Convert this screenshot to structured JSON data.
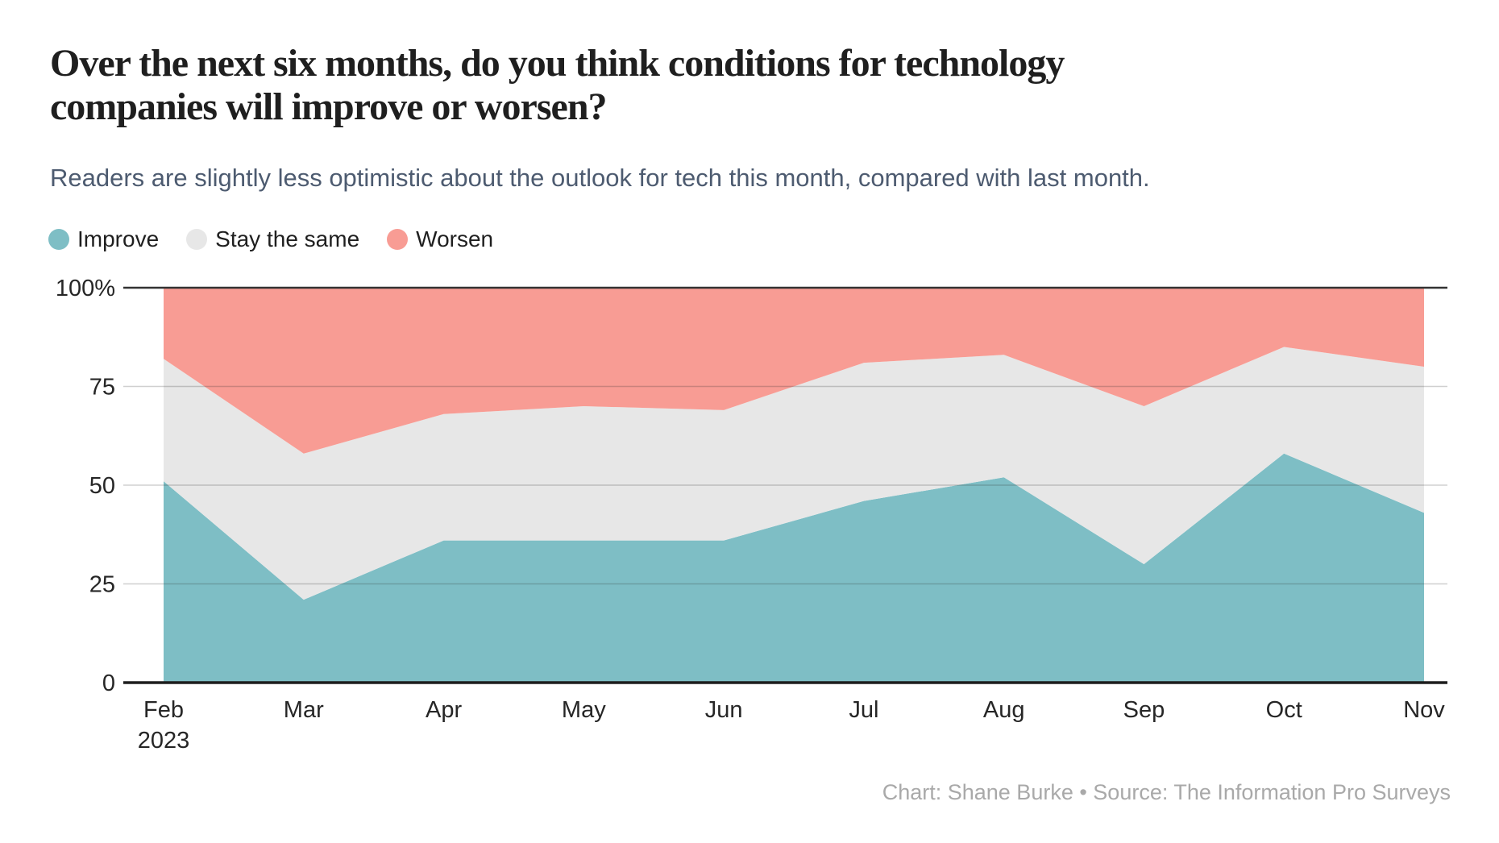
{
  "header": {
    "title_lines": [
      "Over the next six months, do you think conditions for technology",
      "companies will improve or worsen?"
    ],
    "subtitle": "Readers are slightly less optimistic about the outlook for tech this month, compared with last month."
  },
  "footer": {
    "credit": "Chart: Shane Burke • Source: The Information Pro Surveys"
  },
  "colors": {
    "improve": "#7ebec5",
    "stay_the_same": "#e7e7e7",
    "worsen": "#f89c94",
    "axis_line_top": "#333333",
    "axis_line_bottom": "#1d1d1d",
    "gridline": "rgba(40,40,40,0.22)",
    "tick_label": "#262626",
    "title_text": "#1f1f1f",
    "subtitle_text": "#4d5b70",
    "credit_text": "#a9a9a9",
    "background": "#ffffff"
  },
  "chart_data": {
    "type": "area",
    "stacked": true,
    "unit": "%",
    "title": "Over the next six months, do you think conditions for technology companies will improve or worsen?",
    "subtitle": "Readers are slightly less optimistic about the outlook for tech this month, compared with last month.",
    "categories": [
      "Feb",
      "Mar",
      "Apr",
      "May",
      "Jun",
      "Jul",
      "Aug",
      "Sep",
      "Oct",
      "Nov"
    ],
    "category_sublabels": [
      "2023",
      "",
      "",
      "",
      "",
      "",
      "",
      "",
      "",
      ""
    ],
    "series": [
      {
        "name": "Improve",
        "color": "#7ebec5",
        "values": [
          51,
          21,
          36,
          36,
          36,
          46,
          52,
          30,
          58,
          43
        ]
      },
      {
        "name": "Stay the same",
        "color": "#e7e7e7",
        "values": [
          31,
          37,
          32,
          34,
          33,
          35,
          31,
          40,
          27,
          37
        ]
      },
      {
        "name": "Worsen",
        "color": "#f89c94",
        "values": [
          18,
          42,
          32,
          30,
          31,
          19,
          17,
          30,
          15,
          20
        ]
      }
    ],
    "ylim": [
      0,
      100
    ],
    "yticks": [
      {
        "value": 0,
        "label": "0"
      },
      {
        "value": 25,
        "label": "25"
      },
      {
        "value": 50,
        "label": "50"
      },
      {
        "value": 75,
        "label": "75"
      },
      {
        "value": 100,
        "label": "100%"
      }
    ],
    "grid": "horizontal",
    "legend_position": "top",
    "xlabel": "",
    "ylabel": ""
  }
}
